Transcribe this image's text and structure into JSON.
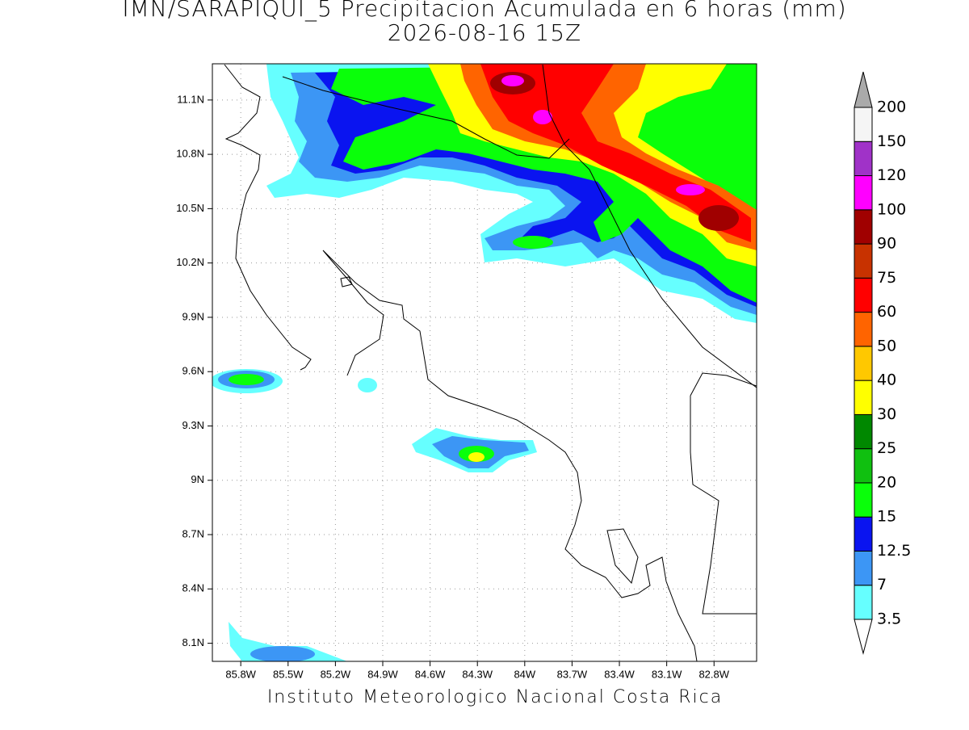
{
  "title": "IMN/SARAPIQUI_5 Precipitacion Acumulada en 6 horas (mm)",
  "subtitle": "2026-08-16 15Z",
  "credit": "Instituto Meteorologico Nacional Costa Rica",
  "map": {
    "lonlim": [
      -85.98,
      -82.53
    ],
    "latlim": [
      8.0,
      11.3
    ],
    "lonticks": [
      {
        "value": -85.8,
        "label": "85.8W"
      },
      {
        "value": -85.5,
        "label": "85.5W"
      },
      {
        "value": -85.2,
        "label": "85.2W"
      },
      {
        "value": -84.9,
        "label": "84.9W"
      },
      {
        "value": -84.6,
        "label": "84.6W"
      },
      {
        "value": -84.3,
        "label": "84.3W"
      },
      {
        "value": -84.0,
        "label": "84W"
      },
      {
        "value": -83.7,
        "label": "83.7W"
      },
      {
        "value": -83.4,
        "label": "83.4W"
      },
      {
        "value": -83.1,
        "label": "83.1W"
      },
      {
        "value": -82.8,
        "label": "82.8W"
      }
    ],
    "latticks": [
      {
        "value": 11.1,
        "label": "11.1N"
      },
      {
        "value": 10.8,
        "label": "10.8N"
      },
      {
        "value": 10.5,
        "label": "10.5N"
      },
      {
        "value": 10.2,
        "label": "10.2N"
      },
      {
        "value": 9.9,
        "label": "9.9N"
      },
      {
        "value": 9.6,
        "label": "9.6N"
      },
      {
        "value": 9.3,
        "label": "9.3N"
      },
      {
        "value": 9.0,
        "label": "9N"
      },
      {
        "value": 8.7,
        "label": "8.7N"
      },
      {
        "value": 8.4,
        "label": "8.4N"
      },
      {
        "value": 8.1,
        "label": "8.1N"
      }
    ],
    "grid": true
  },
  "colorbar": {
    "levels": [
      3.5,
      7,
      12.5,
      15,
      20,
      25,
      30,
      40,
      50,
      60,
      75,
      90,
      100,
      120,
      150,
      200
    ],
    "colors": [
      "#ffffff",
      "#66ffff",
      "#3c96f5",
      "#0a14f0",
      "#0aff0a",
      "#10c010",
      "#008800",
      "#ffff00",
      "#ffc800",
      "#ff6400",
      "#ff0000",
      "#c83200",
      "#a00000",
      "#ff00ff",
      "#a032c8",
      "#f5f5f5",
      "#aaaaaa"
    ]
  }
}
